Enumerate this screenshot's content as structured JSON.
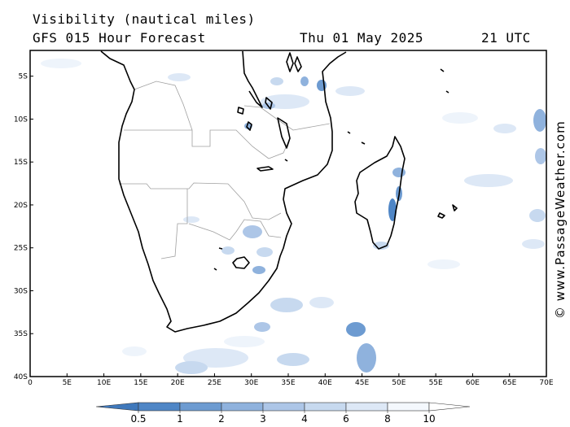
{
  "header": {
    "title": "Visibility (nautical miles)",
    "subtitle": "GFS 015 Hour Forecast",
    "date": "Thu 01 May 2025",
    "time": "21 UTC"
  },
  "credit": "© www.PassageWeather.com",
  "map": {
    "lon_range": [
      0,
      70
    ],
    "lat_range": [
      -40,
      -2
    ],
    "lon_ticks": [
      "0",
      "5E",
      "10E",
      "15E",
      "20E",
      "25E",
      "30E",
      "35E",
      "40E",
      "45E",
      "50E",
      "55E",
      "60E",
      "65E",
      "70E"
    ],
    "lat_ticks": [
      "5S",
      "10S",
      "15S",
      "20S",
      "25S",
      "30S",
      "35S",
      "40S"
    ]
  },
  "legend": {
    "labels": [
      "0.5",
      "1",
      "2",
      "3",
      "4",
      "6",
      "8",
      "10"
    ],
    "colors": [
      "#3f78bb",
      "#4f86c6",
      "#6d9bd1",
      "#8fb2dd",
      "#adc6e7",
      "#c7d9ef",
      "#dde8f6",
      "#f4f8fd"
    ]
  }
}
